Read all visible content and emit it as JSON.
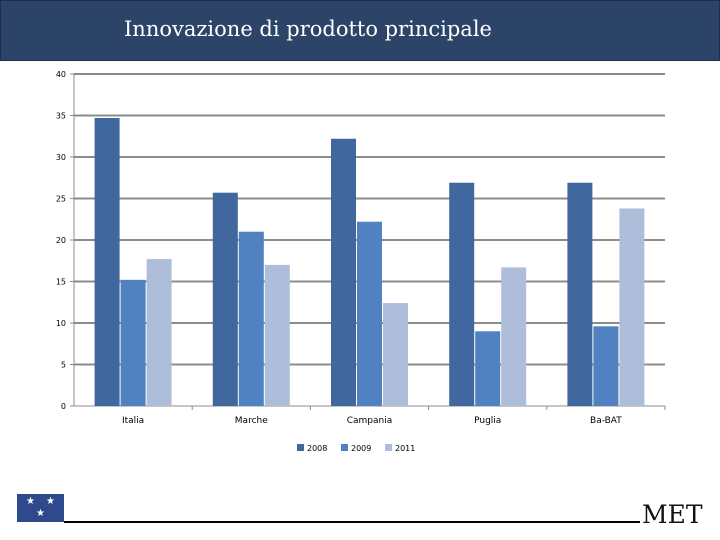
{
  "slide": {
    "title": "Innovazione di prodotto principale",
    "brand": "MET"
  },
  "chart_data": {
    "type": "bar",
    "categories": [
      "Italia",
      "Marche",
      "Campania",
      "Puglia",
      "Ba-BAT"
    ],
    "series": [
      {
        "name": "2008",
        "values": [
          34.7,
          25.7,
          32.2,
          26.9,
          26.9
        ],
        "color": "#41679f"
      },
      {
        "name": "2009",
        "values": [
          15.2,
          21.0,
          22.2,
          9.0,
          9.6
        ],
        "color": "#5081c0"
      },
      {
        "name": "2011",
        "values": [
          17.7,
          17.0,
          12.4,
          16.7,
          23.8
        ],
        "color": "#adbdda"
      }
    ],
    "ylim": [
      0,
      40
    ],
    "yticks": [
      0,
      5,
      10,
      15,
      20,
      25,
      30,
      35,
      40
    ],
    "grid": true,
    "legend": "bottom"
  }
}
